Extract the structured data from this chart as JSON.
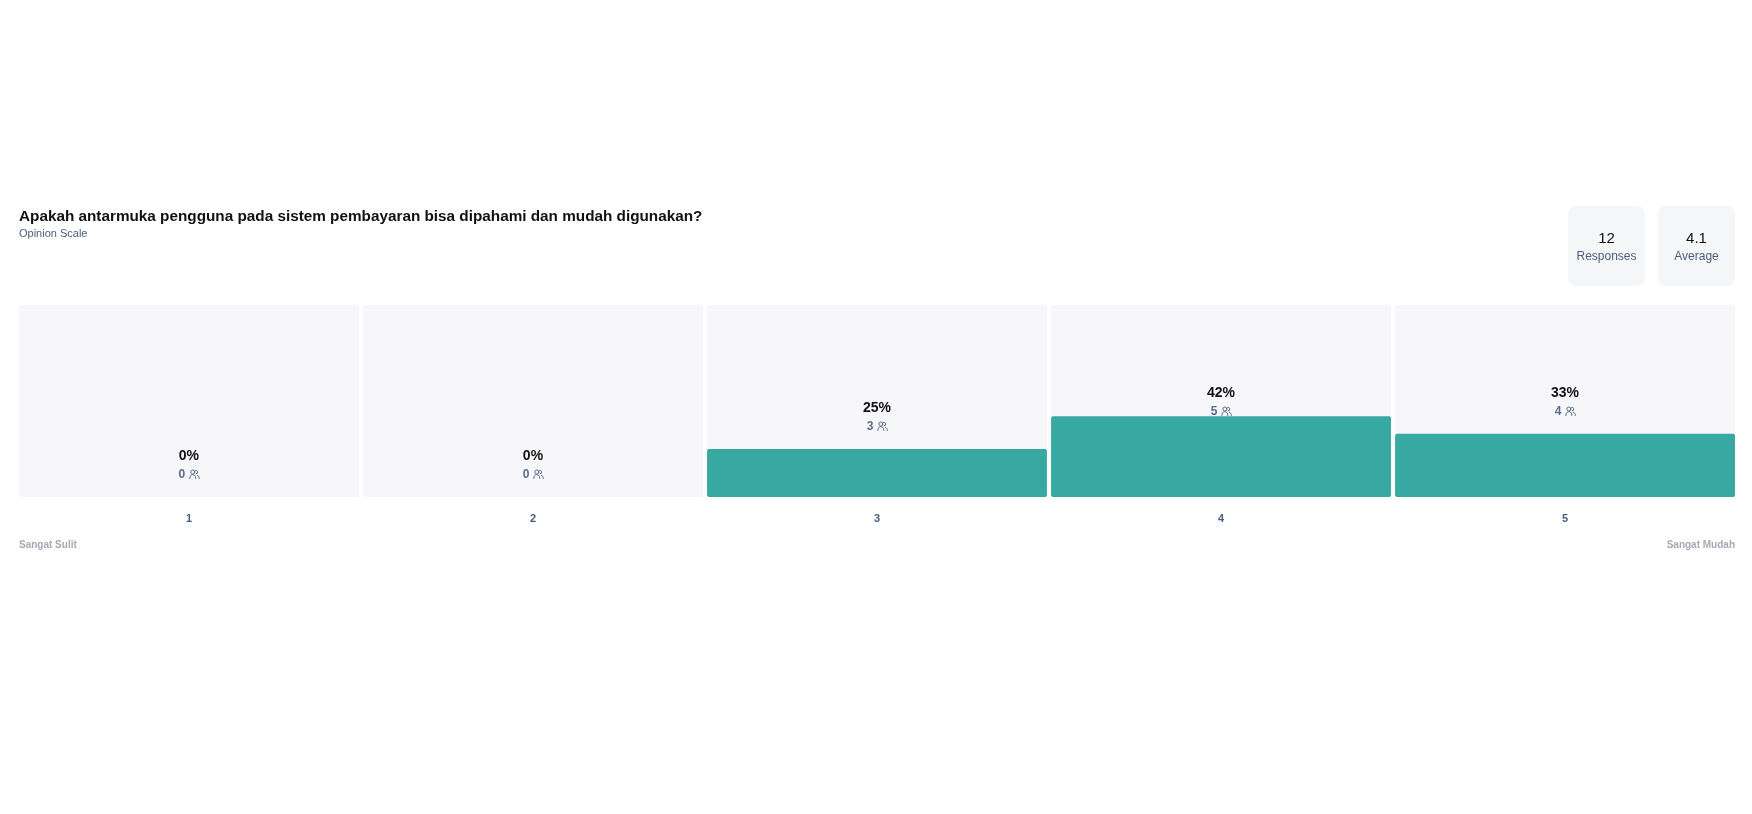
{
  "chart_data": [
    {
      "type": "bar",
      "title": "Apakah antarmuka pengguna pada sistem pembayaran bisa dipahami dan mudah digunakan?",
      "subtitle": "Opinion Scale",
      "categories": [
        "1",
        "2",
        "3",
        "4",
        "5"
      ],
      "values": [
        0,
        0,
        25,
        42,
        33
      ],
      "value_labels": [
        "0%",
        "0%",
        "25%",
        "42%",
        "33%"
      ],
      "color": "#38a8a2",
      "ylim": [
        0,
        100
      ],
      "tick_labels": "x",
      "annotations": [
        "0",
        "0",
        "3",
        "5",
        "4",
        "Sangat Sulit",
        "Sangat Mudah"
      ]
    },
    {
      "type": "other",
      "categories": [
        "Responses",
        "Average"
      ],
      "values": [
        12,
        4.1
      ],
      "data_labels": true
    }
  ]
}
